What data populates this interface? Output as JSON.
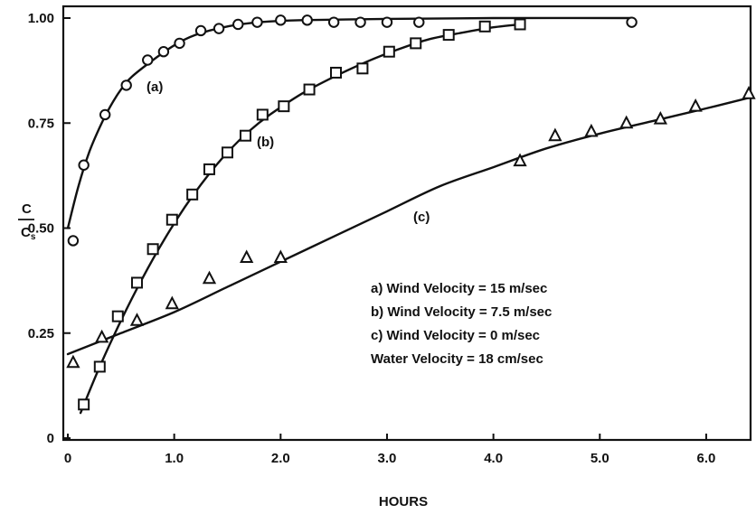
{
  "chart_data": {
    "type": "scatter",
    "title": "",
    "xlabel": "HOURS",
    "ylabel": {
      "numerator": "C",
      "denominator": "C",
      "denominator_subscript": "s"
    },
    "xlim": [
      0,
      6.4
    ],
    "ylim": [
      0,
      1.03
    ],
    "x_ticks": [
      0,
      1.0,
      2.0,
      3.0,
      4.0,
      5.0,
      6.0
    ],
    "x_tick_labels": [
      "0",
      "1.0",
      "2.0",
      "3.0",
      "4.0",
      "5.0",
      "6.0"
    ],
    "y_ticks": [
      0,
      0.25,
      0.5,
      0.75,
      1.0
    ],
    "y_tick_labels": [
      "0",
      "0.25",
      "0.50",
      "0.75",
      "1.00"
    ],
    "grid": false,
    "series": [
      {
        "name": "(a)",
        "marker": "circle",
        "x": [
          0.05,
          0.15,
          0.35,
          0.55,
          0.75,
          0.9,
          1.05,
          1.25,
          1.42,
          1.6,
          1.78,
          2.0,
          2.25,
          2.5,
          2.75,
          3.0,
          3.3,
          5.3
        ],
        "y": [
          0.47,
          0.65,
          0.77,
          0.84,
          0.9,
          0.92,
          0.94,
          0.97,
          0.975,
          0.985,
          0.99,
          0.995,
          0.995,
          0.99,
          0.99,
          0.99,
          0.99,
          0.99
        ],
        "curve_x": [
          0.0,
          0.1,
          0.2,
          0.3,
          0.4,
          0.5,
          0.6,
          0.8,
          1.0,
          1.2,
          1.5,
          1.8,
          2.2,
          3.0,
          4.0,
          5.3
        ],
        "curve_y": [
          0.5,
          0.6,
          0.68,
          0.74,
          0.79,
          0.83,
          0.86,
          0.9,
          0.935,
          0.96,
          0.98,
          0.99,
          0.995,
          0.998,
          1.0,
          1.0
        ]
      },
      {
        "name": "(b)",
        "marker": "square",
        "x": [
          0.15,
          0.3,
          0.47,
          0.65,
          0.8,
          0.98,
          1.17,
          1.33,
          1.5,
          1.67,
          1.83,
          2.03,
          2.27,
          2.52,
          2.77,
          3.02,
          3.27,
          3.58,
          3.92,
          4.25
        ],
        "y": [
          0.08,
          0.17,
          0.29,
          0.37,
          0.45,
          0.52,
          0.58,
          0.64,
          0.68,
          0.72,
          0.77,
          0.79,
          0.83,
          0.87,
          0.88,
          0.92,
          0.94,
          0.96,
          0.98,
          0.985
        ],
        "curve_x": [
          0.12,
          0.3,
          0.5,
          0.7,
          0.9,
          1.1,
          1.3,
          1.5,
          1.7,
          1.9,
          2.2,
          2.5,
          2.8,
          3.1,
          3.4,
          3.7,
          4.0,
          4.25
        ],
        "curve_y": [
          0.06,
          0.17,
          0.28,
          0.38,
          0.47,
          0.55,
          0.62,
          0.68,
          0.73,
          0.77,
          0.82,
          0.86,
          0.895,
          0.925,
          0.95,
          0.965,
          0.978,
          0.985
        ]
      },
      {
        "name": "(c)",
        "marker": "triangle",
        "x": [
          0.05,
          0.32,
          0.65,
          0.98,
          1.33,
          1.68,
          2.0,
          4.25,
          4.58,
          4.92,
          5.25,
          5.57,
          5.9,
          6.4
        ],
        "y": [
          0.18,
          0.24,
          0.28,
          0.32,
          0.38,
          0.43,
          0.43,
          0.66,
          0.72,
          0.73,
          0.75,
          0.76,
          0.79,
          0.82
        ],
        "curve_x": [
          0.0,
          0.5,
          1.0,
          1.5,
          2.0,
          2.5,
          3.0,
          3.5,
          4.0,
          4.5,
          5.0,
          5.5,
          6.0,
          6.4
        ],
        "curve_y": [
          0.2,
          0.25,
          0.3,
          0.36,
          0.42,
          0.48,
          0.54,
          0.6,
          0.645,
          0.69,
          0.725,
          0.755,
          0.785,
          0.81
        ]
      }
    ],
    "annotations": {
      "a": "(a)",
      "b": "(b)",
      "c": "(c)"
    },
    "notes": [
      "a)  Wind Velocity = 15 m/sec",
      "b)  Wind Velocity = 7.5 m/sec",
      "c)  Wind Velocity = 0 m/sec",
      "Water Velocity = 18 cm/sec"
    ]
  }
}
